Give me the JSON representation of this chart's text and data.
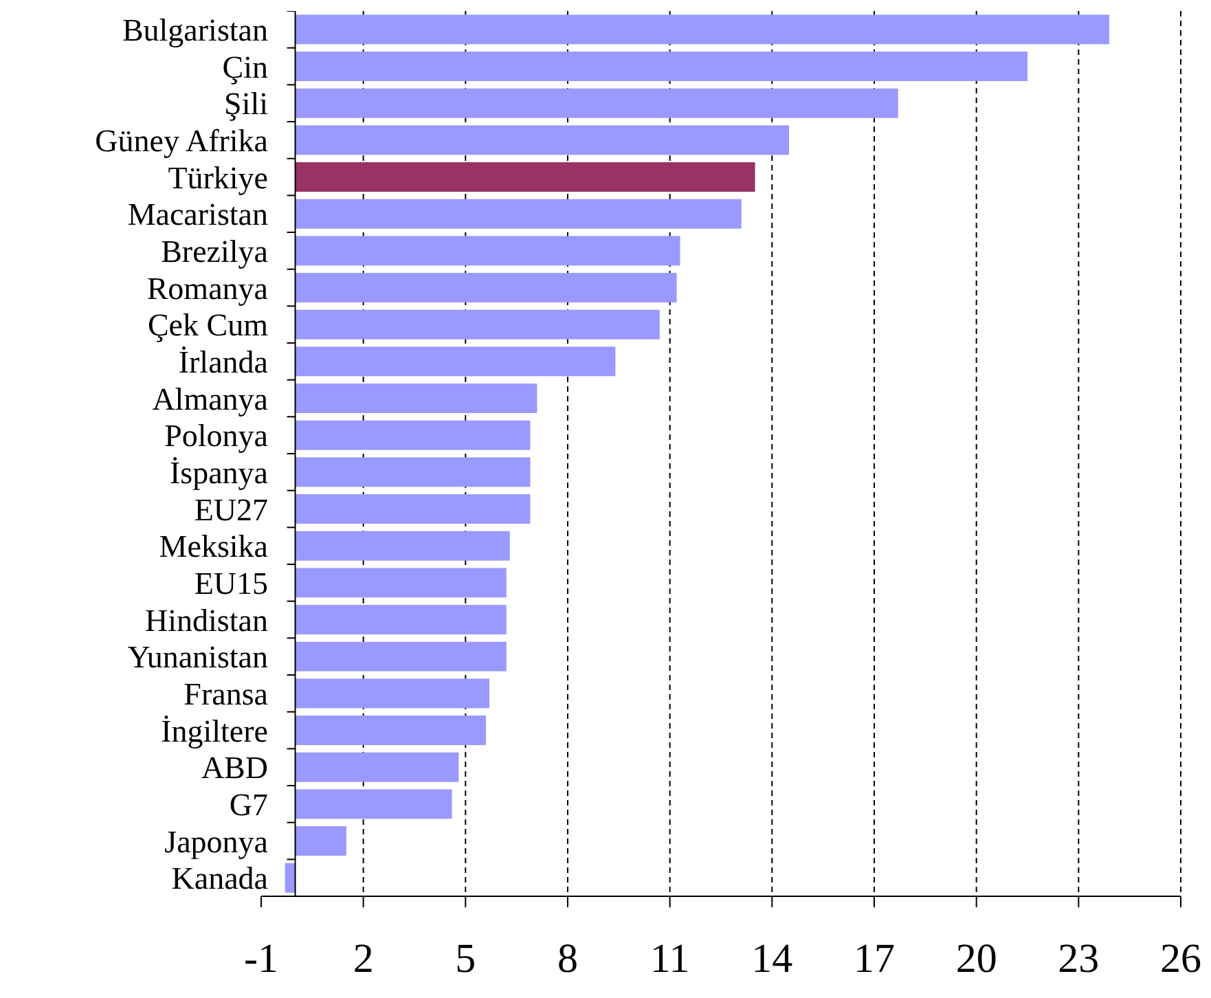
{
  "chart_data": {
    "type": "bar",
    "orientation": "horizontal",
    "categories": [
      "Bulgaristan",
      "Çin",
      "Şili",
      "Güney Afrika",
      "Türkiye",
      "Macaristan",
      "Brezilya",
      "Romanya",
      "Çek Cum",
      "İrlanda",
      "Almanya",
      "Polonya",
      "İspanya",
      "EU27",
      "Meksika",
      "EU15",
      "Hindistan",
      "Yunanistan",
      "Fransa",
      "İngiltere",
      "ABD",
      "G7",
      "Japonya",
      "Kanada"
    ],
    "values": [
      23.9,
      21.5,
      17.7,
      14.5,
      13.5,
      13.1,
      11.3,
      11.2,
      10.7,
      9.4,
      7.1,
      6.9,
      6.9,
      6.9,
      6.3,
      6.2,
      6.2,
      6.2,
      5.7,
      5.6,
      4.8,
      4.6,
      1.5,
      -0.3
    ],
    "colors": [
      "#9999ff",
      "#9999ff",
      "#9999ff",
      "#9999ff",
      "#993366",
      "#9999ff",
      "#9999ff",
      "#9999ff",
      "#9999ff",
      "#9999ff",
      "#9999ff",
      "#9999ff",
      "#9999ff",
      "#9999ff",
      "#9999ff",
      "#9999ff",
      "#9999ff",
      "#9999ff",
      "#9999ff",
      "#9999ff",
      "#9999ff",
      "#9999ff",
      "#9999ff",
      "#9999ff"
    ],
    "xlim": [
      -1,
      26
    ],
    "xticks": [
      -1,
      2,
      5,
      8,
      11,
      14,
      17,
      20,
      23,
      26
    ],
    "grid": "x"
  }
}
